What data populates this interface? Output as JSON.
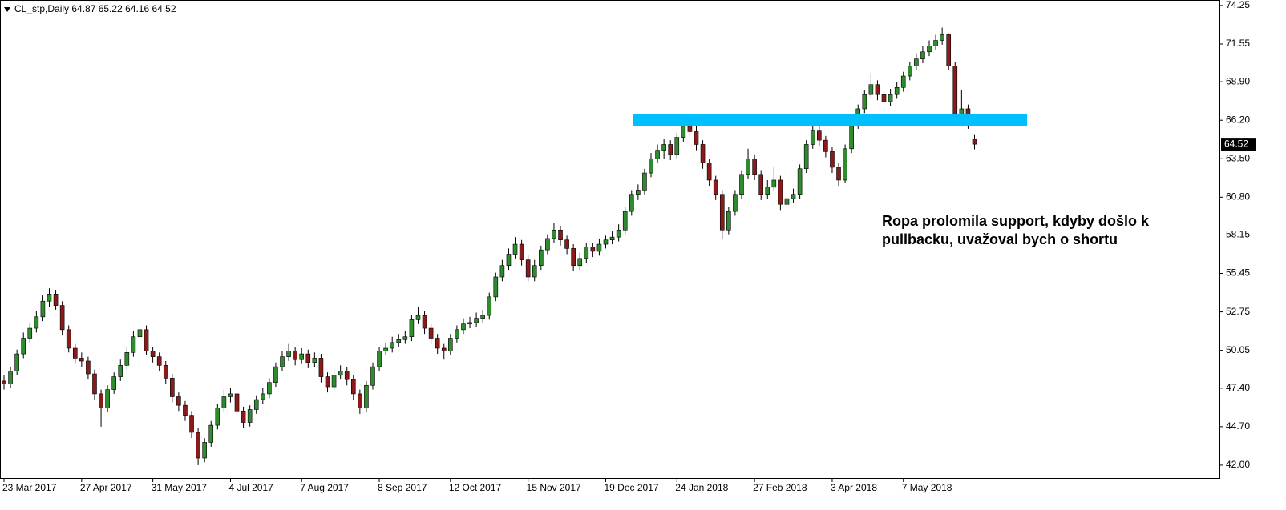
{
  "chart_data": {
    "type": "candlestick",
    "symbol": "CL_stp,Daily",
    "ylim": [
      41.04,
      74.64
    ],
    "yticks": [
      {
        "value": 42,
        "label": "42.00"
      },
      {
        "value": 44.7,
        "label": "44.70"
      },
      {
        "value": 47.4,
        "label": "47.40"
      },
      50.05,
      52.75,
      55.45,
      58.15,
      {
        "value": 60.8,
        "label": "60.80"
      },
      {
        "value": 63.5,
        "label": "63.50"
      },
      {
        "value": 66.2,
        "label": "66.20"
      },
      {
        "value": 68.9,
        "label": "68.90"
      },
      71.55,
      74.25
    ],
    "xticks": [
      {
        "value": 0,
        "label": "23 Mar 2017"
      },
      {
        "value": 12,
        "label": "27 Apr 2017"
      },
      {
        "value": 23,
        "label": "31 May 2017"
      },
      {
        "value": 35,
        "label": "4 Jul 2017"
      },
      {
        "value": 46,
        "label": "7 Aug 2017"
      },
      {
        "value": 58,
        "label": "8 Sep 2017"
      },
      {
        "value": 69,
        "label": "12 Oct 2017"
      },
      {
        "value": 81,
        "label": "15 Nov 2017"
      },
      {
        "value": 93,
        "label": "19 Dec 2017"
      },
      {
        "value": 104,
        "label": "24 Jan 2018"
      },
      {
        "value": 116,
        "label": "27 Feb 2018"
      },
      {
        "value": 128,
        "label": "3 Apr 2018"
      },
      {
        "value": 139,
        "label": "7 May 2018"
      }
    ],
    "up_color": "#2e8b2e",
    "down_color": "#8b1a1a",
    "support_zone": {
      "color": "#00bfff",
      "range": [
        65.77,
        66.64
      ]
    },
    "annotation": [
      "Ropa prolomila support, kdyby došlo k",
      "pullbacku, uvažoval bych o shortu"
    ],
    "open": [
      47.9,
      47.7,
      48.6,
      49.8,
      50.9,
      51.6,
      52.4,
      53.5,
      54.0,
      53.2,
      51.5,
      50.2,
      49.5,
      49.3,
      48.4,
      47.0,
      46.0,
      47.3,
      48.2,
      49.0,
      49.9,
      51.0,
      51.5,
      50.0,
      49.6,
      49.0,
      48.1,
      46.8,
      46.2,
      45.5,
      44.3,
      42.5,
      43.6,
      44.8,
      46.0,
      46.8,
      47.0,
      45.8,
      45.0,
      45.9,
      46.6,
      47.0,
      47.8,
      48.9,
      49.6,
      50.0,
      49.4,
      49.8,
      49.2,
      49.5,
      48.2,
      47.5,
      48.3,
      48.6,
      48.0,
      47.0,
      46.0,
      47.6,
      48.9,
      50.0,
      50.2,
      50.6,
      50.8,
      51.0,
      52.2,
      52.5,
      51.6,
      50.9,
      50.2,
      50.0,
      50.9,
      51.5,
      51.9,
      52.0,
      52.3,
      52.5,
      53.8,
      55.2,
      56.0,
      56.8,
      57.5,
      56.4,
      55.2,
      56.0,
      57.1,
      57.9,
      58.5,
      57.8,
      57.2,
      56.0,
      56.5,
      57.3,
      57.0,
      57.5,
      57.8,
      58.0,
      58.5,
      59.8,
      61.0,
      61.3,
      62.5,
      63.5,
      64.1,
      64.5,
      63.8,
      65.0,
      66.0,
      65.4,
      64.5,
      63.2,
      62.0,
      61.0,
      58.5,
      59.8,
      61.0,
      62.4,
      63.5,
      62.4,
      61.0,
      61.5,
      62.0,
      60.3,
      60.7,
      61.0,
      62.8,
      64.5,
      65.5,
      64.8,
      64.0,
      62.9,
      62.0,
      64.2,
      66.0,
      67.0,
      68.0,
      68.7,
      68.0,
      67.5,
      68.0,
      68.5,
      69.3,
      70.0,
      70.5,
      71.0,
      71.4,
      71.8,
      72.2,
      70.0,
      66.2,
      67.0,
      64.87
    ],
    "high": [
      48.3,
      48.9,
      50.1,
      51.3,
      52.0,
      52.8,
      53.9,
      54.4,
      54.3,
      53.5,
      51.8,
      50.5,
      49.9,
      49.6,
      48.7,
      47.3,
      47.6,
      48.5,
      49.4,
      50.3,
      51.4,
      52.1,
      51.8,
      50.3,
      49.9,
      49.3,
      48.4,
      47.1,
      46.5,
      45.8,
      44.6,
      43.9,
      45.1,
      46.3,
      47.3,
      47.4,
      47.3,
      46.1,
      46.2,
      46.9,
      47.4,
      48.1,
      49.2,
      50.0,
      50.5,
      50.3,
      50.2,
      50.1,
      49.9,
      49.8,
      48.5,
      48.7,
      49.0,
      48.9,
      48.3,
      47.3,
      47.9,
      49.2,
      50.3,
      50.6,
      51.0,
      51.2,
      51.4,
      52.5,
      53.1,
      52.8,
      51.9,
      51.2,
      50.5,
      51.2,
      51.8,
      52.3,
      52.4,
      52.7,
      52.9,
      54.1,
      55.5,
      56.4,
      57.2,
      58.0,
      57.8,
      56.7,
      56.4,
      57.4,
      58.2,
      59.0,
      58.8,
      58.1,
      57.5,
      56.9,
      57.6,
      57.6,
      57.9,
      58.1,
      58.4,
      58.9,
      60.1,
      61.3,
      61.7,
      62.8,
      63.9,
      64.5,
      64.9,
      64.8,
      65.3,
      66.6,
      66.3,
      66.0,
      64.8,
      63.5,
      62.3,
      61.3,
      60.1,
      61.3,
      62.7,
      64.2,
      63.8,
      62.7,
      62.0,
      62.9,
      62.3,
      61.1,
      61.4,
      63.1,
      64.8,
      66.5,
      65.8,
      65.1,
      64.3,
      63.2,
      64.5,
      66.3,
      67.3,
      68.3,
      69.5,
      69.0,
      68.3,
      68.4,
      68.9,
      69.6,
      70.3,
      70.9,
      71.4,
      71.8,
      72.2,
      72.7,
      72.3,
      70.3,
      68.3,
      67.3,
      65.22
    ],
    "low": [
      47.3,
      47.4,
      48.3,
      49.5,
      50.6,
      51.3,
      52.1,
      53.1,
      52.9,
      51.1,
      49.9,
      49.1,
      48.9,
      48.0,
      46.6,
      44.7,
      45.7,
      47.0,
      47.9,
      48.7,
      49.6,
      50.7,
      49.7,
      49.2,
      48.6,
      47.7,
      46.4,
      45.8,
      45.1,
      43.9,
      42.0,
      42.2,
      43.3,
      44.5,
      45.7,
      46.4,
      45.4,
      44.6,
      44.7,
      45.6,
      46.3,
      46.7,
      47.5,
      48.6,
      49.3,
      49.0,
      49.1,
      48.8,
      48.9,
      47.8,
      47.1,
      47.2,
      48.0,
      47.6,
      46.6,
      45.6,
      45.7,
      47.3,
      48.6,
      49.7,
      49.9,
      50.3,
      50.5,
      50.7,
      51.9,
      51.2,
      50.5,
      49.8,
      49.4,
      49.7,
      50.6,
      51.2,
      51.6,
      51.7,
      52.0,
      52.2,
      53.5,
      54.9,
      55.7,
      56.5,
      56.0,
      54.9,
      54.9,
      55.7,
      56.8,
      57.6,
      57.4,
      56.8,
      55.6,
      55.7,
      56.2,
      56.6,
      56.7,
      57.2,
      57.5,
      57.7,
      58.2,
      59.5,
      60.6,
      61.0,
      62.2,
      63.2,
      63.5,
      63.4,
      63.5,
      64.7,
      65.0,
      64.1,
      62.8,
      61.6,
      60.6,
      57.9,
      58.2,
      59.5,
      60.7,
      62.1,
      62.0,
      60.6,
      60.7,
      61.2,
      59.9,
      60.0,
      60.4,
      60.7,
      62.5,
      64.2,
      64.4,
      63.6,
      62.5,
      61.6,
      61.8,
      63.9,
      65.6,
      66.7,
      67.7,
      67.6,
      67.1,
      67.2,
      67.7,
      68.2,
      69.0,
      69.7,
      70.2,
      70.7,
      71.1,
      71.5,
      69.7,
      65.8,
      65.9,
      65.6,
      64.16
    ],
    "close": [
      47.7,
      48.6,
      49.8,
      50.9,
      51.6,
      52.4,
      53.5,
      54.0,
      53.2,
      51.5,
      50.2,
      49.5,
      49.3,
      48.4,
      47.0,
      46.0,
      47.3,
      48.2,
      49.0,
      49.9,
      51.0,
      51.5,
      50.0,
      49.6,
      49.0,
      48.1,
      46.8,
      46.2,
      45.5,
      44.3,
      42.5,
      43.6,
      44.8,
      46.0,
      46.8,
      47.0,
      45.8,
      45.0,
      45.9,
      46.6,
      47.0,
      47.8,
      48.9,
      49.6,
      50.0,
      49.4,
      49.8,
      49.2,
      49.5,
      48.2,
      47.5,
      48.3,
      48.6,
      48.0,
      47.0,
      46.0,
      47.6,
      48.9,
      50.0,
      50.2,
      50.6,
      50.8,
      51.0,
      52.2,
      52.5,
      51.6,
      50.9,
      50.2,
      50.0,
      50.9,
      51.5,
      51.9,
      52.0,
      52.3,
      52.5,
      53.8,
      55.2,
      56.0,
      56.8,
      57.5,
      56.4,
      55.2,
      56.0,
      57.1,
      57.9,
      58.5,
      57.8,
      57.2,
      56.0,
      56.5,
      57.3,
      57.0,
      57.5,
      57.8,
      58.0,
      58.5,
      59.8,
      61.0,
      61.3,
      62.5,
      63.5,
      64.1,
      64.5,
      63.8,
      65.0,
      66.0,
      65.4,
      64.5,
      63.2,
      62.0,
      61.0,
      58.5,
      59.8,
      61.0,
      62.4,
      63.5,
      62.4,
      61.0,
      61.5,
      62.0,
      60.3,
      60.7,
      61.0,
      62.8,
      64.5,
      65.5,
      64.8,
      64.0,
      62.9,
      62.0,
      64.2,
      66.0,
      67.0,
      68.0,
      68.7,
      68.0,
      67.5,
      68.0,
      68.5,
      69.3,
      70.0,
      70.5,
      71.0,
      71.4,
      71.8,
      72.2,
      70.0,
      66.2,
      67.0,
      66.0,
      64.52
    ]
  }
}
